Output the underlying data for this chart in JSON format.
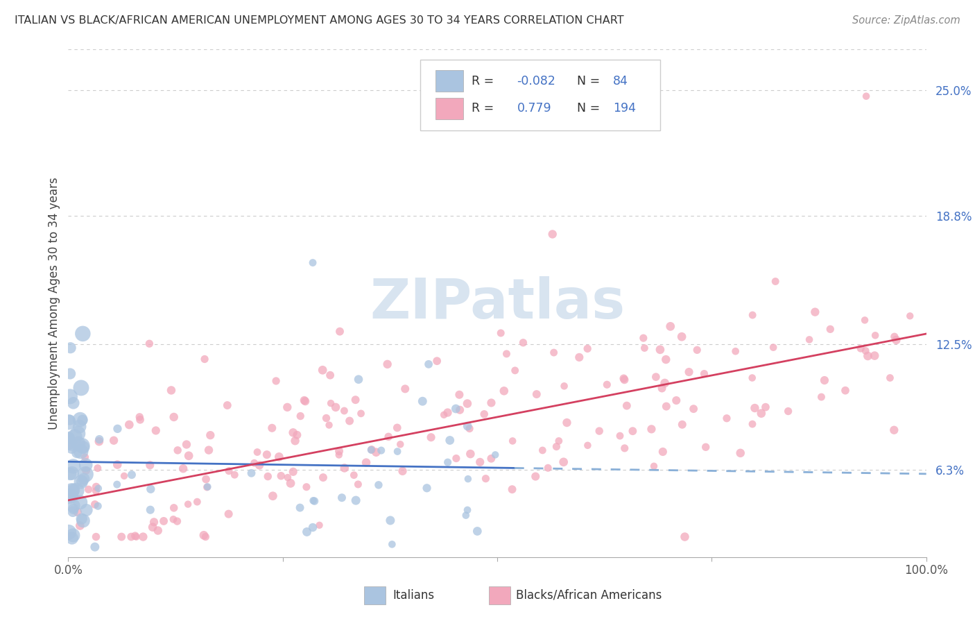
{
  "title": "ITALIAN VS BLACK/AFRICAN AMERICAN UNEMPLOYMENT AMONG AGES 30 TO 34 YEARS CORRELATION CHART",
  "source": "Source: ZipAtlas.com",
  "ylabel": "Unemployment Among Ages 30 to 34 years",
  "xlim": [
    0.0,
    1.0
  ],
  "ylim": [
    0.02,
    0.27
  ],
  "y_tick_labels": [
    "6.3%",
    "12.5%",
    "18.8%",
    "25.0%"
  ],
  "y_tick_values": [
    0.063,
    0.125,
    0.188,
    0.25
  ],
  "legend_label1": "Italians",
  "legend_label2": "Blacks/African Americans",
  "R1": "-0.082",
  "N1": 84,
  "R2": "0.779",
  "N2": 194,
  "color_italian": "#aac4e0",
  "color_black": "#f2a8bc",
  "color_italian_line_solid": "#4472c4",
  "color_italian_line_dashed": "#8ab0d8",
  "color_black_line": "#d44060",
  "watermark_color": "#d8e4f0",
  "background_color": "#ffffff",
  "grid_color": "#cccccc",
  "it_line_m": -0.006,
  "it_line_b": 0.067,
  "it_line_solid_end": 0.52,
  "bk_line_m": 0.082,
  "bk_line_b": 0.048
}
